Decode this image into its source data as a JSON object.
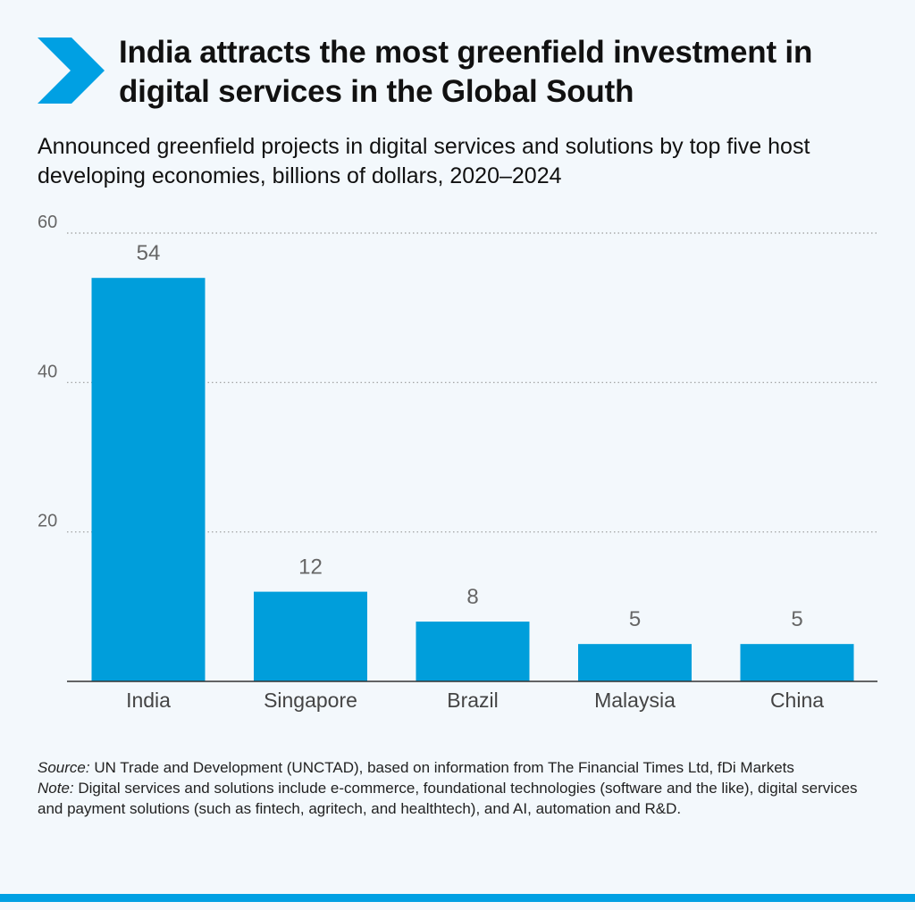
{
  "header": {
    "title": "India attracts the most greenfield investment in digital services in the Global South",
    "subtitle": "Announced greenfield projects in digital services and solutions by top five host developing economies, billions of dollars, 2020–2024"
  },
  "chart_data": {
    "type": "bar",
    "categories": [
      "India",
      "Singapore",
      "Brazil",
      "Malaysia",
      "China"
    ],
    "values": [
      54,
      12,
      8,
      5,
      5
    ],
    "data_labels": [
      "54",
      "12",
      "8",
      "5",
      "5"
    ],
    "y_ticks": [
      20,
      40,
      60
    ],
    "ylim": [
      0,
      60
    ],
    "grid": "horizontal-dotted",
    "legend": "none",
    "title": "",
    "xlabel": "",
    "ylabel": ""
  },
  "footer": {
    "source_lead": "Source:",
    "source_text": " UN Trade and Development (UNCTAD), based on information from The Financial Times Ltd, fDi Markets",
    "note_lead": "Note:",
    "note_text": " Digital services and solutions include e-commerce, foundational technologies (software and the like), digital services and payment solutions (such as fintech, agritech, and healthtech), and AI, automation and R&D."
  },
  "colors": {
    "bar": "#009edb",
    "accent": "#00a0e3",
    "axis": "#333333",
    "grid": "#9a9a9a",
    "label": "#666666"
  },
  "icons": {
    "header_marker": "chevron-right-icon"
  }
}
